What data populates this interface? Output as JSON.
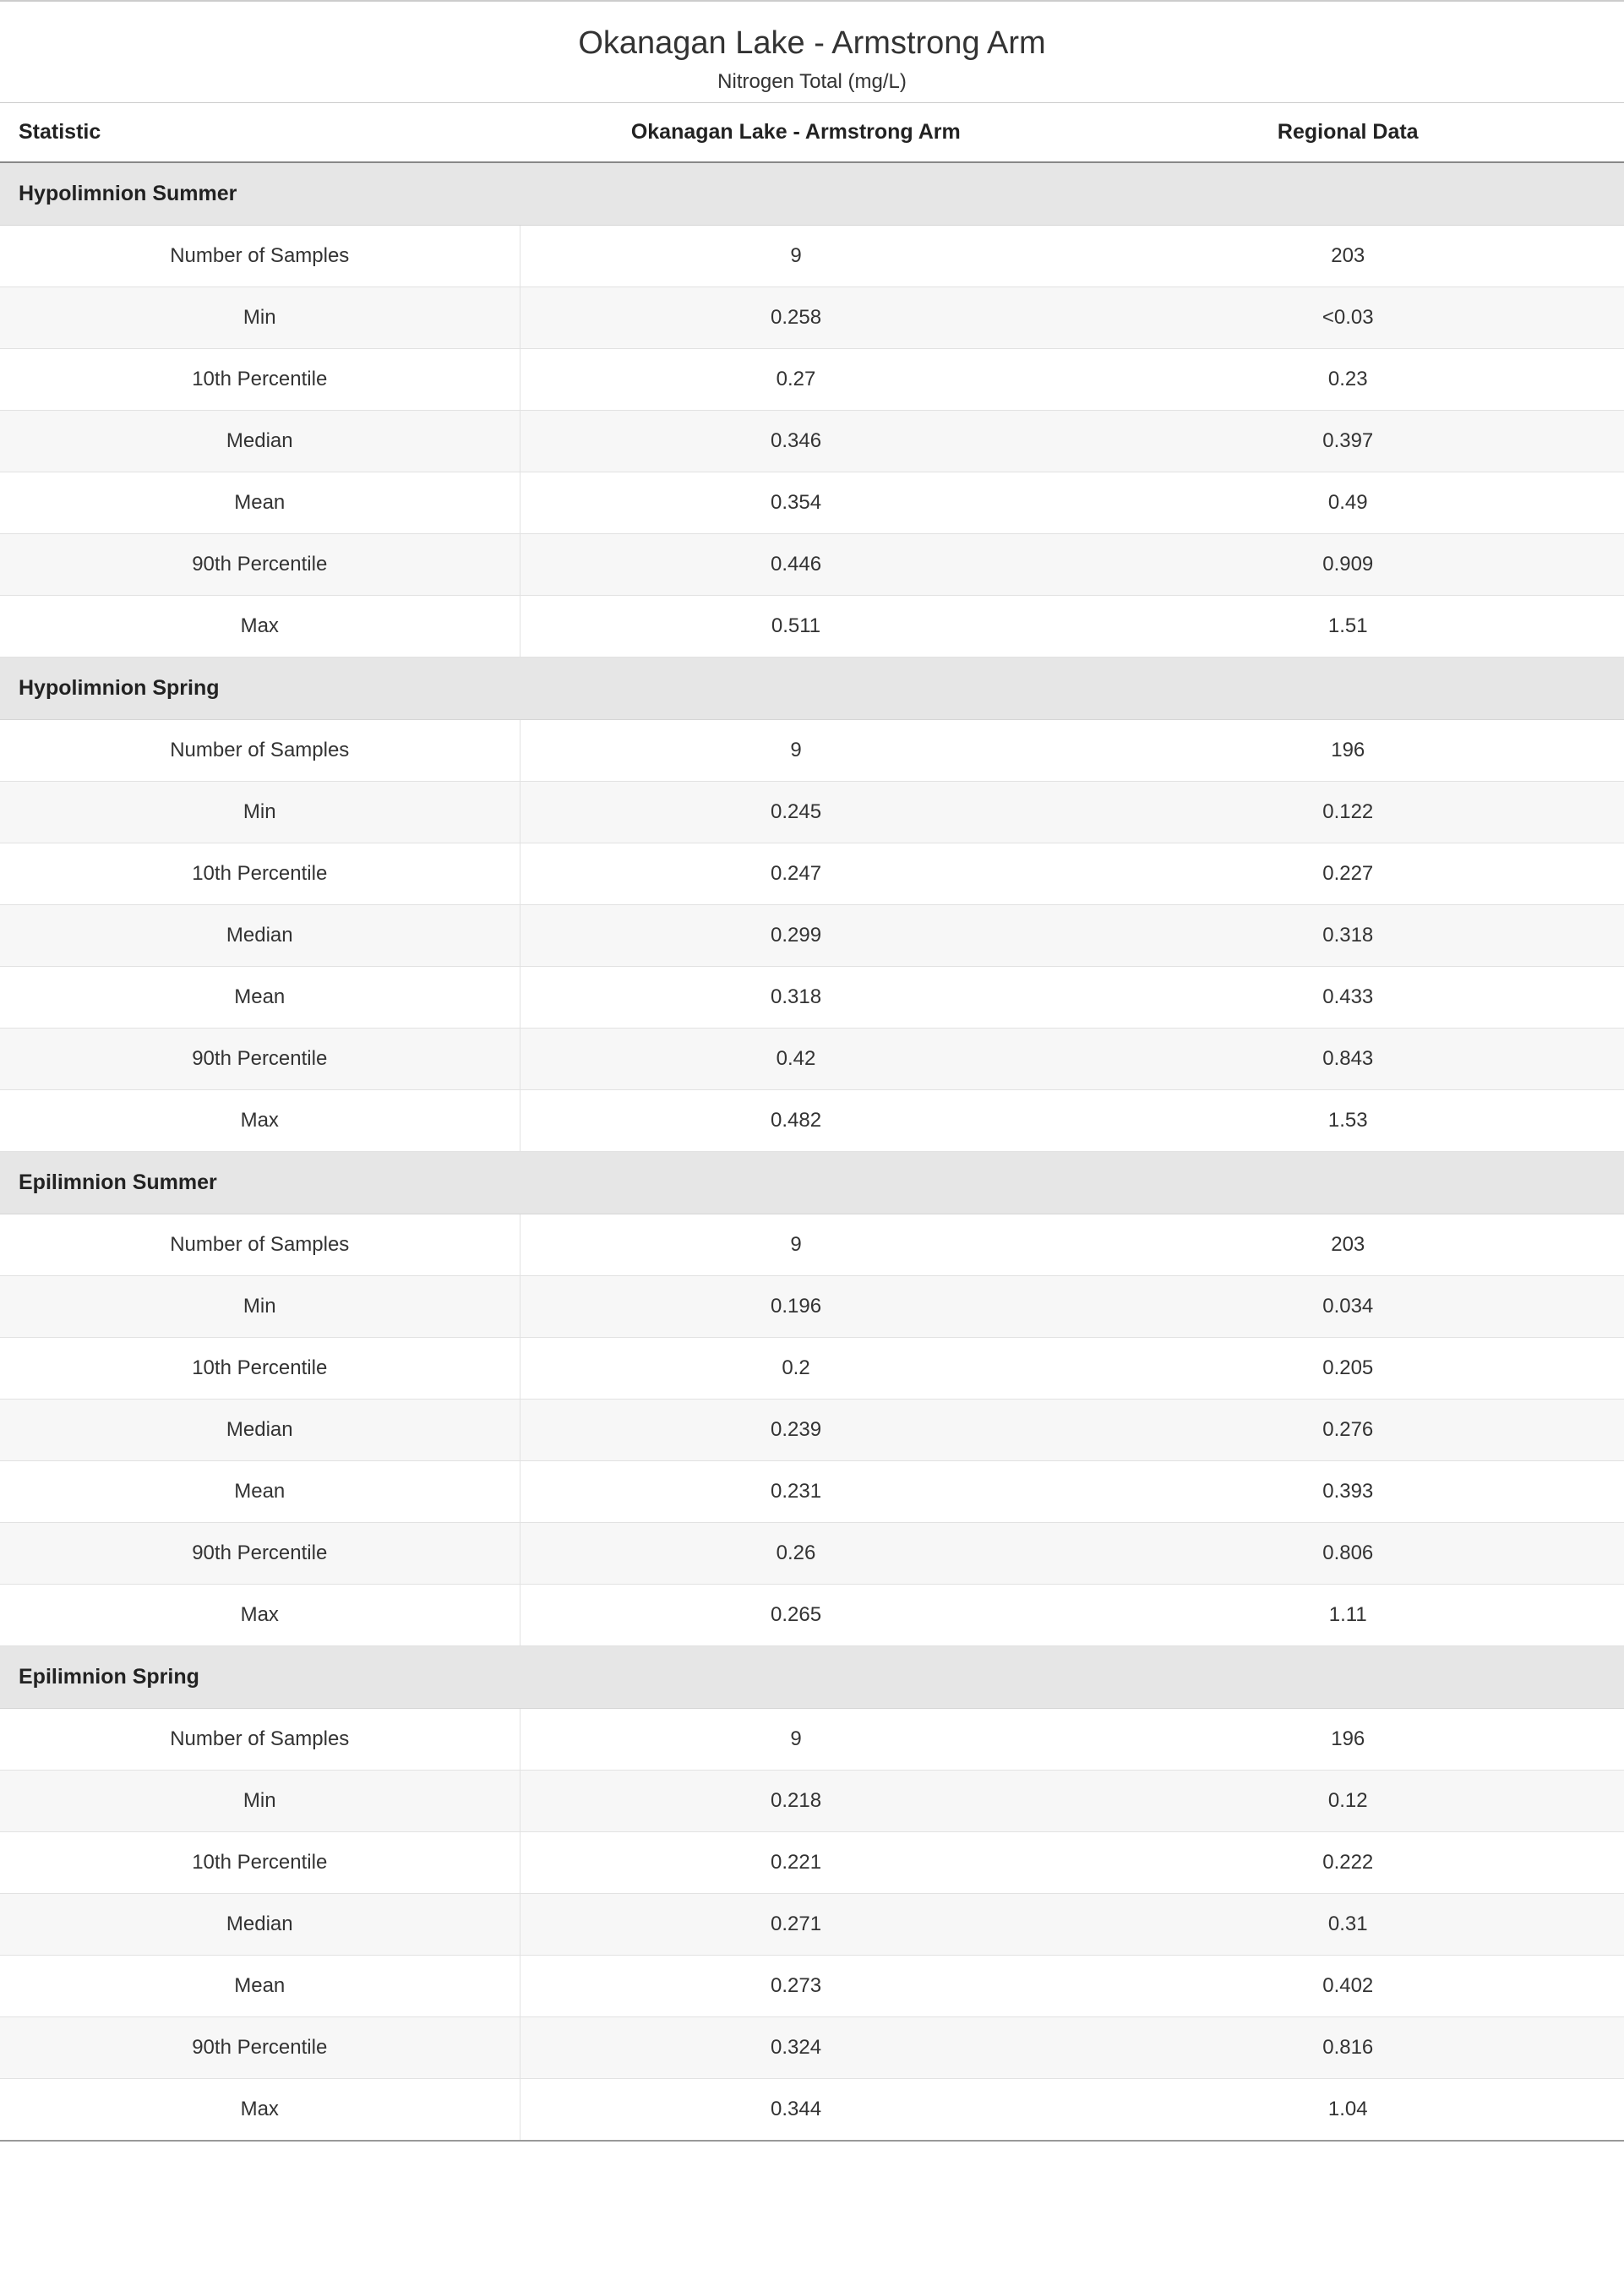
{
  "title": "Okanagan Lake - Armstrong Arm",
  "subtitle": "Nitrogen Total (mg/L)",
  "columns": {
    "statistic": "Statistic",
    "site": "Okanagan Lake - Armstrong Arm",
    "regional": "Regional Data"
  },
  "stat_labels": {
    "num_samples": "Number of Samples",
    "min": "Min",
    "p10": "10th Percentile",
    "median": "Median",
    "mean": "Mean",
    "p90": "90th Percentile",
    "max": "Max"
  },
  "sections": [
    {
      "name": "Hypolimnion Summer",
      "rows": {
        "num_samples": {
          "site": "9",
          "regional": "203"
        },
        "min": {
          "site": "0.258",
          "regional": "<0.03"
        },
        "p10": {
          "site": "0.27",
          "regional": "0.23"
        },
        "median": {
          "site": "0.346",
          "regional": "0.397"
        },
        "mean": {
          "site": "0.354",
          "regional": "0.49"
        },
        "p90": {
          "site": "0.446",
          "regional": "0.909"
        },
        "max": {
          "site": "0.511",
          "regional": "1.51"
        }
      }
    },
    {
      "name": "Hypolimnion Spring",
      "rows": {
        "num_samples": {
          "site": "9",
          "regional": "196"
        },
        "min": {
          "site": "0.245",
          "regional": "0.122"
        },
        "p10": {
          "site": "0.247",
          "regional": "0.227"
        },
        "median": {
          "site": "0.299",
          "regional": "0.318"
        },
        "mean": {
          "site": "0.318",
          "regional": "0.433"
        },
        "p90": {
          "site": "0.42",
          "regional": "0.843"
        },
        "max": {
          "site": "0.482",
          "regional": "1.53"
        }
      }
    },
    {
      "name": "Epilimnion Summer",
      "rows": {
        "num_samples": {
          "site": "9",
          "regional": "203"
        },
        "min": {
          "site": "0.196",
          "regional": "0.034"
        },
        "p10": {
          "site": "0.2",
          "regional": "0.205"
        },
        "median": {
          "site": "0.239",
          "regional": "0.276"
        },
        "mean": {
          "site": "0.231",
          "regional": "0.393"
        },
        "p90": {
          "site": "0.26",
          "regional": "0.806"
        },
        "max": {
          "site": "0.265",
          "regional": "1.11"
        }
      }
    },
    {
      "name": "Epilimnion Spring",
      "rows": {
        "num_samples": {
          "site": "9",
          "regional": "196"
        },
        "min": {
          "site": "0.218",
          "regional": "0.12"
        },
        "p10": {
          "site": "0.221",
          "regional": "0.222"
        },
        "median": {
          "site": "0.271",
          "regional": "0.31"
        },
        "mean": {
          "site": "0.273",
          "regional": "0.402"
        },
        "p90": {
          "site": "0.324",
          "regional": "0.816"
        },
        "max": {
          "site": "0.344",
          "regional": "1.04"
        }
      }
    }
  ],
  "styling": {
    "header_bg": "#e6e6e6",
    "row_alt_bg": "#f7f7f7",
    "row_bg": "#ffffff",
    "border_color": "#e2e2e2",
    "header_border": "#888888",
    "top_border": "#cccccc",
    "bottom_border": "#999999",
    "text_color": "#333333",
    "font_family": "Segoe UI",
    "title_fontsize": 38,
    "subtitle_fontsize": 24,
    "header_fontsize": 25,
    "cell_fontsize": 24
  }
}
